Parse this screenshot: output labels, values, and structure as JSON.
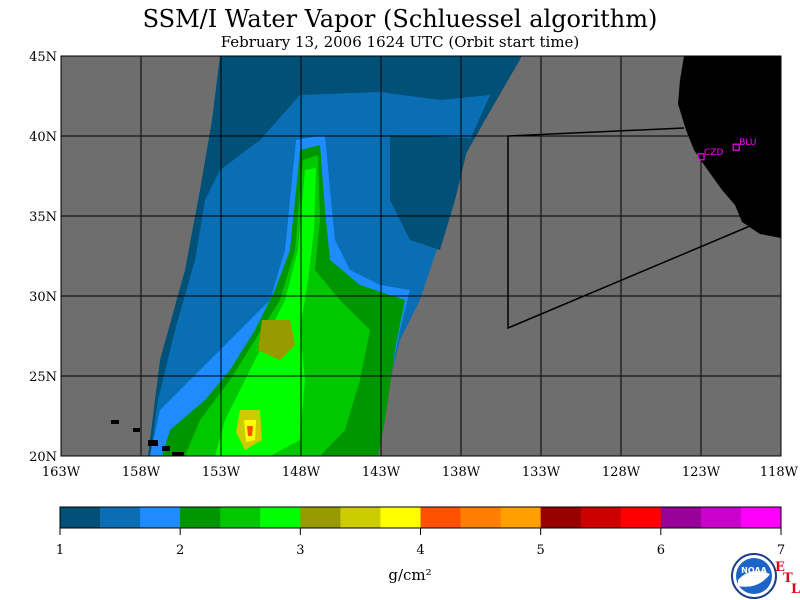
{
  "title": "SSM/I Water Vapor (Schluessel algorithm)",
  "subtitle": "February 13, 2006  1624 UTC  (Orbit start time)",
  "map": {
    "lon_range": [
      -163,
      -118
    ],
    "lat_range": [
      20,
      45
    ],
    "lat_ticks": [
      "45N",
      "40N",
      "35N",
      "30N",
      "25N",
      "20N"
    ],
    "lon_ticks": [
      "163W",
      "158W",
      "153W",
      "148W",
      "143W",
      "138W",
      "133W",
      "128W",
      "123W",
      "118W"
    ],
    "stations": [
      {
        "label": "CZD",
        "lon": -123.0,
        "lat": 38.7
      },
      {
        "label": "BLU",
        "lon": -120.8,
        "lat": 39.3
      }
    ],
    "colors": {
      "no_data": "#6e6e6e",
      "land": "#000000",
      "grid": "#000000",
      "station": "#ff00ff"
    }
  },
  "colorbar": {
    "unit": "g/cm²",
    "tick_labels": [
      "1",
      "2",
      "3",
      "4",
      "5",
      "6",
      "7"
    ],
    "range": [
      1,
      7
    ],
    "colors": [
      "#005077",
      "#0a6eb4",
      "#1e8cff",
      "#009600",
      "#00c800",
      "#00ff00",
      "#999900",
      "#cccc00",
      "#ffff00",
      "#ff5000",
      "#ff8000",
      "#ffa000",
      "#990000",
      "#cc0000",
      "#ff0000",
      "#990099",
      "#cc00cc",
      "#ff00ff"
    ]
  },
  "logo": {
    "text": "NOAA",
    "side_letters": [
      "E",
      "T",
      "L"
    ]
  }
}
